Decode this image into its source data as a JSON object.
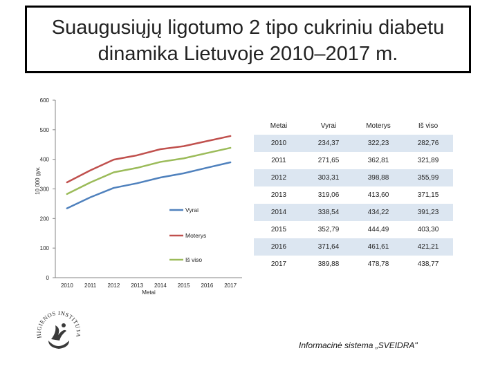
{
  "slide": {
    "title_line1": "Suaugusiųjų ligotumo 2 tipo cukriniu diabetu",
    "title_line2": "dinamika Lietuvoje 2010–2017 m.",
    "source": "Informacinė sistema „SVEIDRA\""
  },
  "logo": {
    "text": "HIGIENOS INSTITUTAS"
  },
  "chart_data": {
    "type": "line",
    "x": [
      2010,
      2011,
      2012,
      2013,
      2014,
      2015,
      2016,
      2017
    ],
    "xticks": [
      "2010",
      "2011",
      "2012",
      "2013",
      "2014",
      "2015",
      "2016",
      "2017"
    ],
    "xlabel": "Metai",
    "ylabel": "10 000 gyv.",
    "ylim": [
      0,
      600
    ],
    "yticks": [
      0,
      100,
      200,
      300,
      400,
      500,
      600
    ],
    "grid": false,
    "series": [
      {
        "name": "Vyrai",
        "color": "#4f81bd",
        "values": [
          234.37,
          271.65,
          303.31,
          319.06,
          338.54,
          352.79,
          371.64,
          389.88
        ]
      },
      {
        "name": "Moterys",
        "color": "#c0504d",
        "values": [
          322.23,
          362.81,
          398.88,
          413.6,
          434.22,
          444.49,
          461.61,
          478.78
        ]
      },
      {
        "name": "Iš viso",
        "color": "#9bbb59",
        "values": [
          282.76,
          321.89,
          355.99,
          371.15,
          391.23,
          403.3,
          421.21,
          438.77
        ]
      }
    ]
  },
  "table": {
    "headers": [
      "Metai",
      "Vyrai",
      "Moterys",
      "Iš viso"
    ],
    "rows": [
      [
        "2010",
        "234,37",
        "322,23",
        "282,76"
      ],
      [
        "2011",
        "271,65",
        "362,81",
        "321,89"
      ],
      [
        "2012",
        "303,31",
        "398,88",
        "355,99"
      ],
      [
        "2013",
        "319,06",
        "413,60",
        "371,15"
      ],
      [
        "2014",
        "338,54",
        "434,22",
        "391,23"
      ],
      [
        "2015",
        "352,79",
        "444,49",
        "403,30"
      ],
      [
        "2016",
        "371,64",
        "461,61",
        "421,21"
      ],
      [
        "2017",
        "389,88",
        "478,78",
        "438,77"
      ]
    ]
  }
}
